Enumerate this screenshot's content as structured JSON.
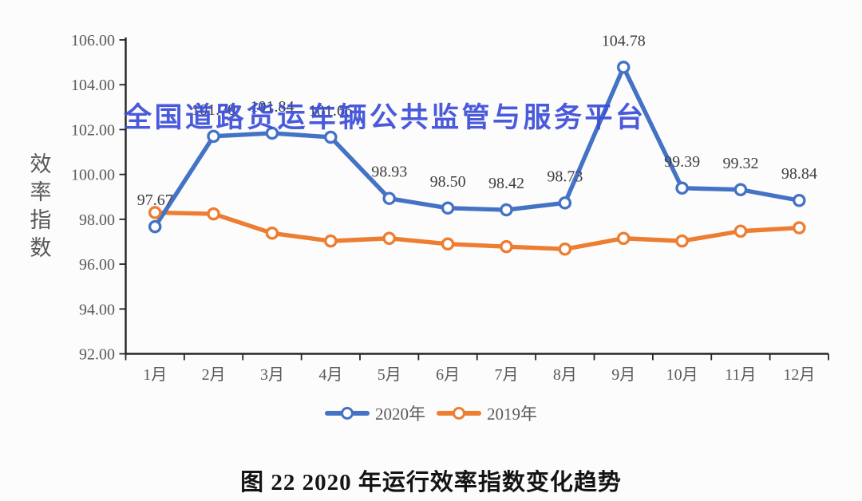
{
  "watermark": "全国道路货运车辆公共监管与服务平台",
  "caption": "图 22  2020 年运行效率指数变化趋势",
  "y_axis_title": "效率指数",
  "colors": {
    "series_2020": "#4472C4",
    "series_2019": "#ED7D31",
    "watermark": "#3C4ED8",
    "axis_line": "#262626",
    "tick_label": "#595959",
    "data_label": "#3F3F3F",
    "background": "#fcfcfc"
  },
  "chart_data": {
    "type": "line",
    "title": "",
    "xlabel": "",
    "ylabel": "效率指数",
    "categories": [
      "1月",
      "2月",
      "3月",
      "4月",
      "5月",
      "6月",
      "7月",
      "8月",
      "9月",
      "10月",
      "11月",
      "12月"
    ],
    "series": [
      {
        "name": "2020年",
        "color": "#4472C4",
        "values": [
          97.67,
          101.7,
          101.84,
          101.66,
          98.93,
          98.5,
          98.42,
          98.73,
          104.78,
          99.39,
          99.32,
          98.84
        ],
        "point_labels": [
          "97.67",
          "101.70",
          "101.84",
          "101.66",
          "98.93",
          "98.50",
          "98.42",
          "98.73",
          "104.78",
          "99.39",
          "99.32",
          "98.84"
        ]
      },
      {
        "name": "2019年",
        "color": "#ED7D31",
        "values": [
          98.3,
          98.24,
          97.38,
          97.03,
          97.15,
          96.9,
          96.78,
          96.67,
          97.15,
          97.03,
          97.47,
          97.62
        ],
        "point_labels": []
      }
    ],
    "ylim": [
      92,
      106
    ],
    "ytick_step": 2,
    "yticks": [
      "106.00",
      "104.00",
      "102.00",
      "100.00",
      "98.00",
      "96.00",
      "94.00",
      "92.00"
    ],
    "grid": false,
    "legend_position": "bottom",
    "marker": "open-circle"
  }
}
